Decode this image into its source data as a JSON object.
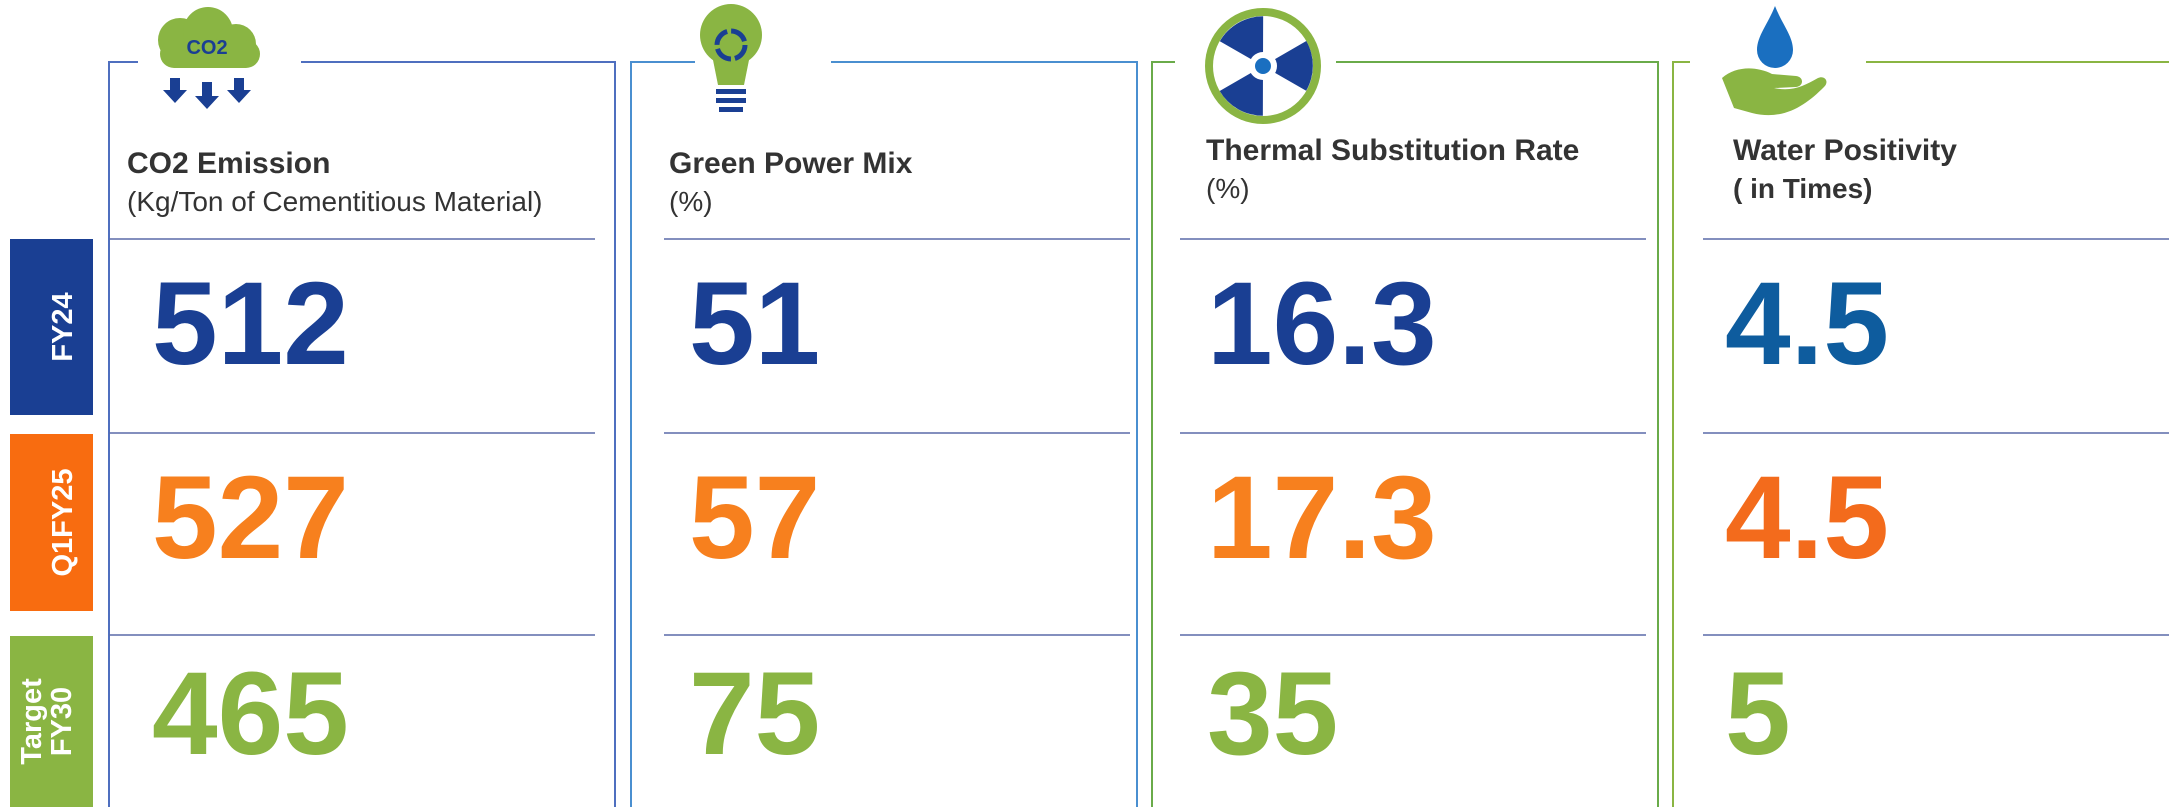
{
  "rows": [
    "FY24",
    "Q1FY25",
    "Target\nFY30"
  ],
  "icon_label": "CO2",
  "columns": [
    {
      "title": "CO2 Emission",
      "subtitle": "(Kg/Ton of Cementitious Material)",
      "values": [
        512,
        527,
        465
      ]
    },
    {
      "title": "Green Power Mix",
      "subtitle": "(%)",
      "values": [
        51,
        57,
        75
      ]
    },
    {
      "title": "Thermal Substitution Rate",
      "subtitle": "(%)",
      "values": [
        16.3,
        17.3,
        35
      ]
    },
    {
      "title": "Water Positivity",
      "subtitle": "( in Times)",
      "values": [
        4.5,
        4.5,
        5
      ]
    }
  ]
}
